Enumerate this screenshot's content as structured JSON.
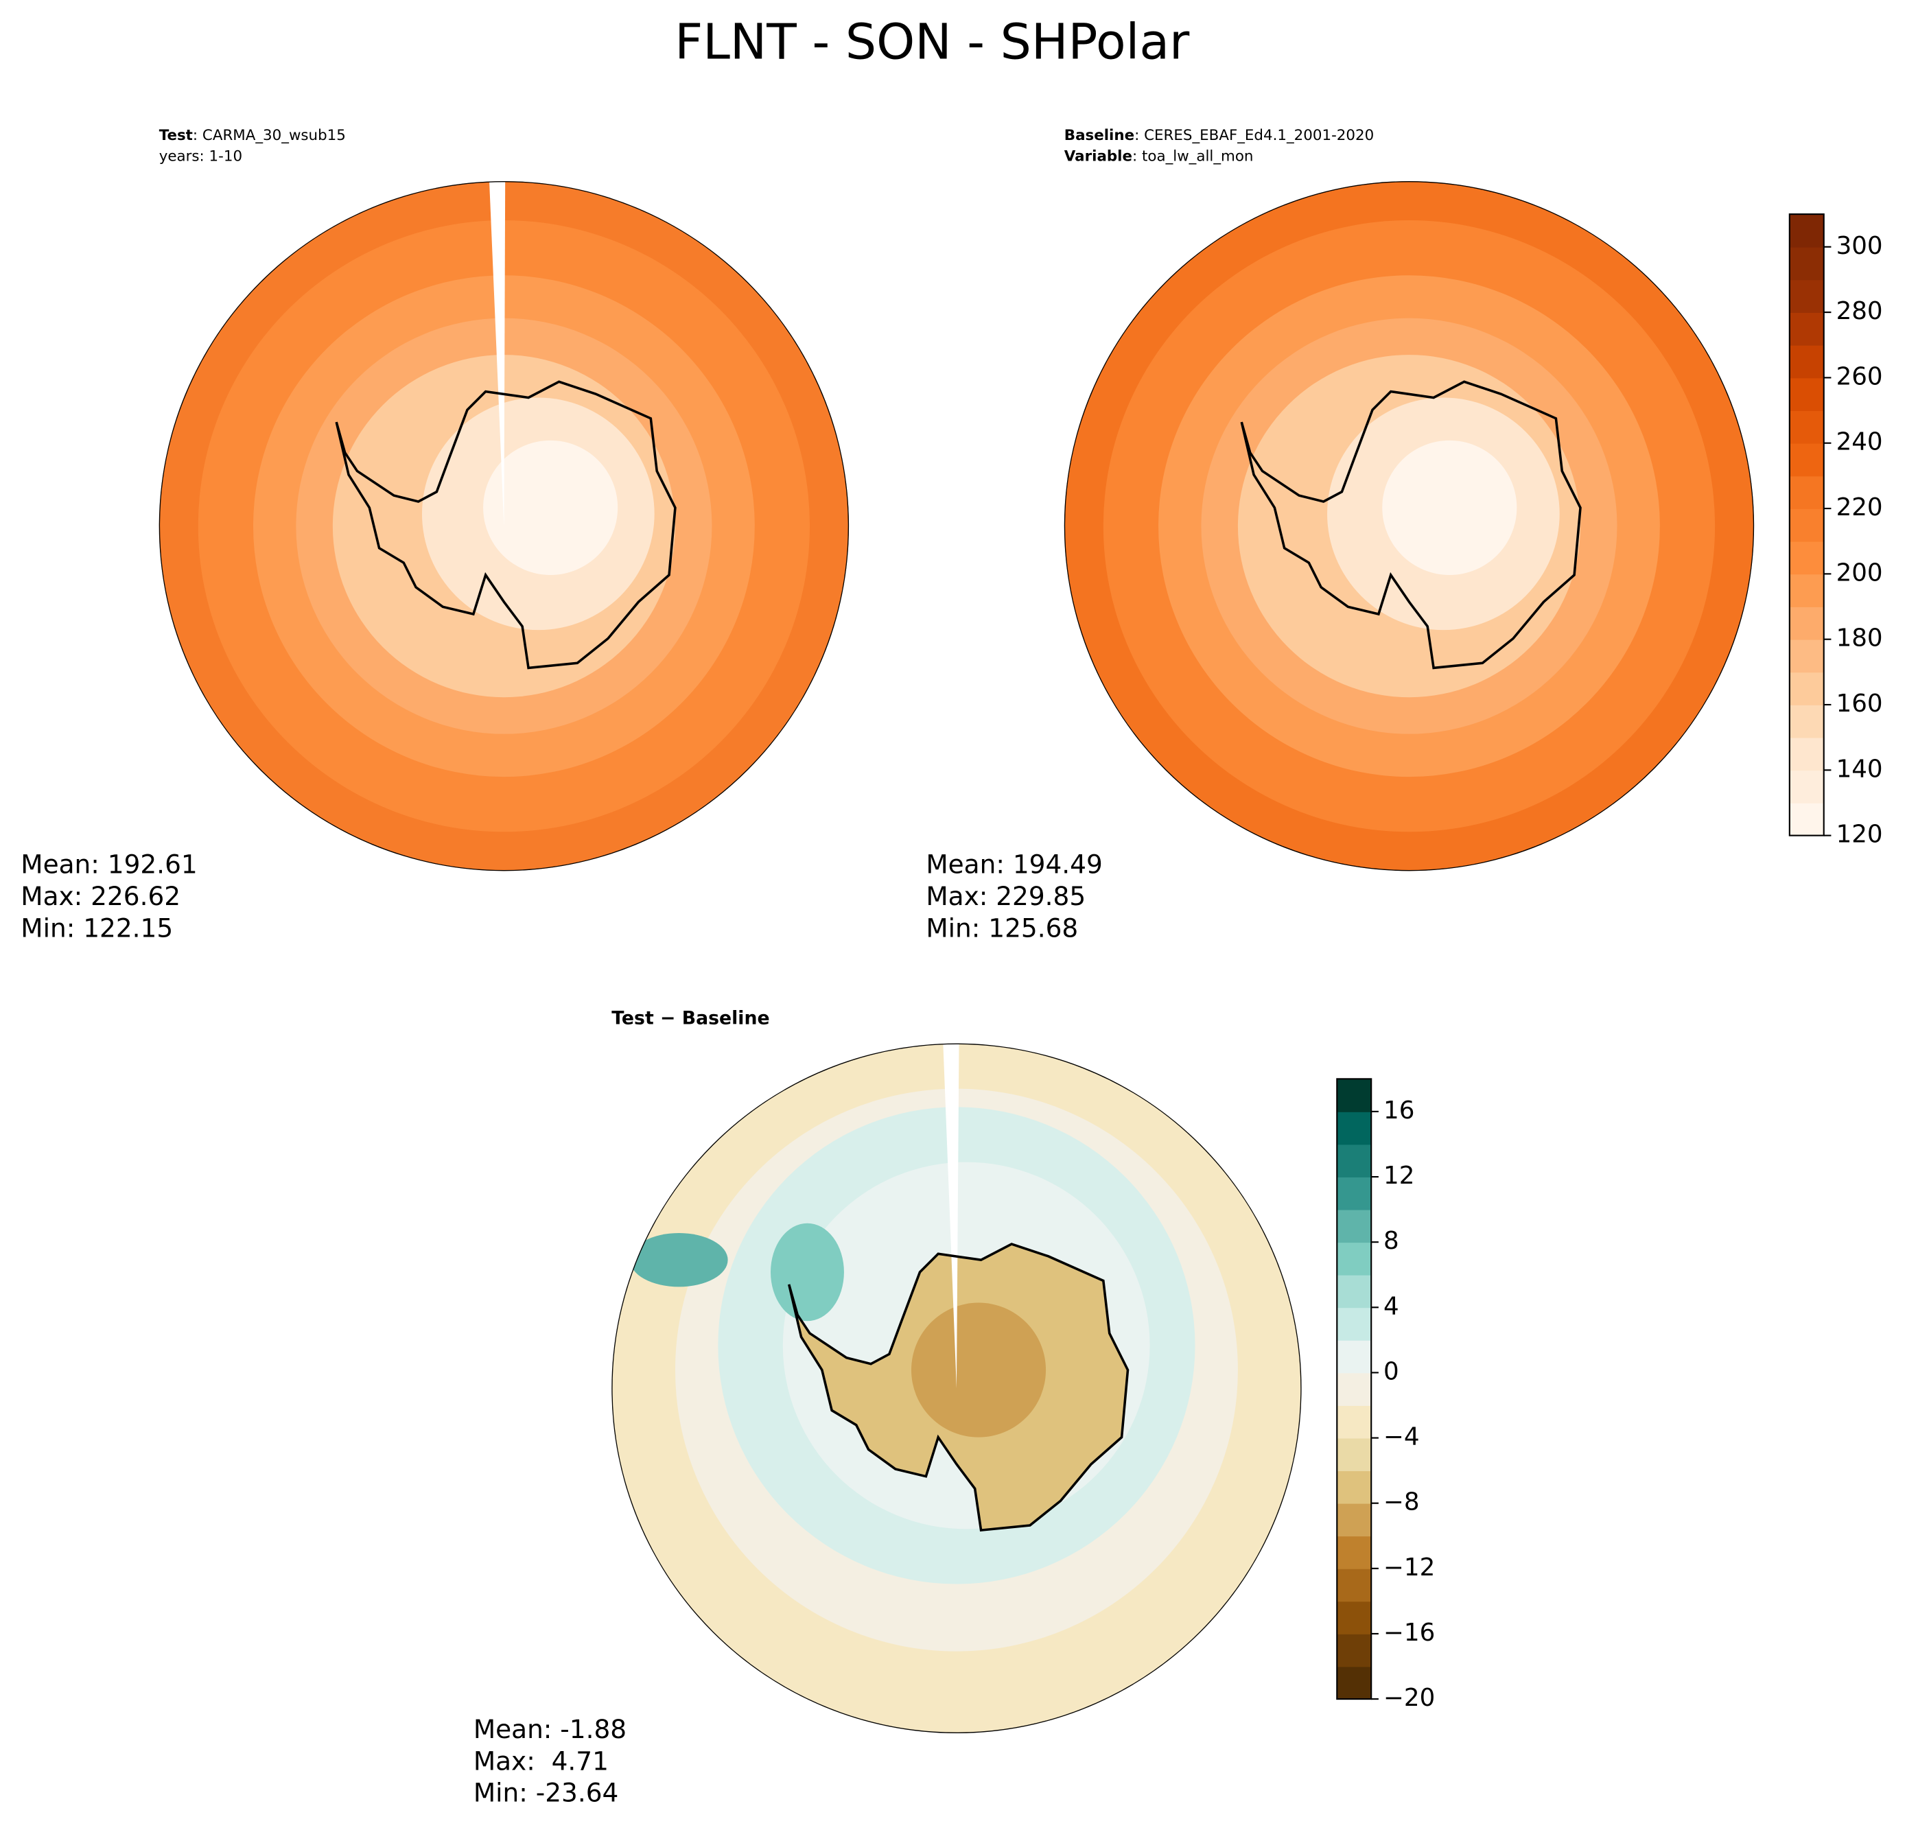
{
  "title": "FLNT - SON - SHPolar",
  "panels": [
    {
      "label_lines": [
        {
          "bold": "Test",
          "text": ": CARMA_30_wsub15"
        },
        {
          "text": "years: 1-10"
        }
      ],
      "stats": [
        "Mean: 192.61",
        "Max: 226.62",
        "Min: 122.15"
      ]
    },
    {
      "label_lines": [
        {
          "bold": "Baseline",
          "text": ": CERES_EBAF_Ed4.1_2001-2020"
        },
        {
          "bold": "Variable",
          "text": ": toa_lw_all_mon"
        }
      ],
      "stats": [
        "Mean: 194.49",
        "Max: 229.85",
        "Min: 125.68"
      ]
    },
    {
      "title": "Test − Baseline",
      "stats": [
        "Mean: -1.88",
        "Max:  4.71",
        "Min: -23.64"
      ]
    }
  ],
  "colorbars": [
    {
      "ylim": [
        120,
        310
      ],
      "yticks": [
        120,
        140,
        160,
        180,
        200,
        220,
        240,
        260,
        280,
        300
      ],
      "colors": [
        "#fff5eb",
        "#feeddc",
        "#fee6ce",
        "#fdd9b4",
        "#fdcb9b",
        "#fdbb84",
        "#fdab6b",
        "#fd9c51",
        "#fd8d3c",
        "#f9802d",
        "#f57622",
        "#ee6511",
        "#e55a0a",
        "#da4e03",
        "#c74201",
        "#b03903",
        "#9a3104",
        "#8c2d04",
        "#7f2704"
      ]
    },
    {
      "ylim": [
        -20,
        18
      ],
      "yticks": [
        {
          "value": -20,
          "label": "−20"
        },
        {
          "value": -16,
          "label": "−16"
        },
        {
          "value": -12,
          "label": "−12"
        },
        {
          "value": -8,
          "label": "−8"
        },
        {
          "value": -4,
          "label": "−4"
        },
        0,
        4,
        8,
        12,
        16
      ],
      "colors": [
        "#543005",
        "#6f3f07",
        "#8c510a",
        "#a8691a",
        "#bf812d",
        "#cfa154",
        "#dfc27d",
        "#eadaa7",
        "#f6e8c3",
        "#f4efe2",
        "#eaf3f1",
        "#c7eae5",
        "#a8ddd5",
        "#80cdc1",
        "#5fb4aa",
        "#35978f",
        "#1b7f77",
        "#01665e",
        "#003c30"
      ]
    }
  ]
}
